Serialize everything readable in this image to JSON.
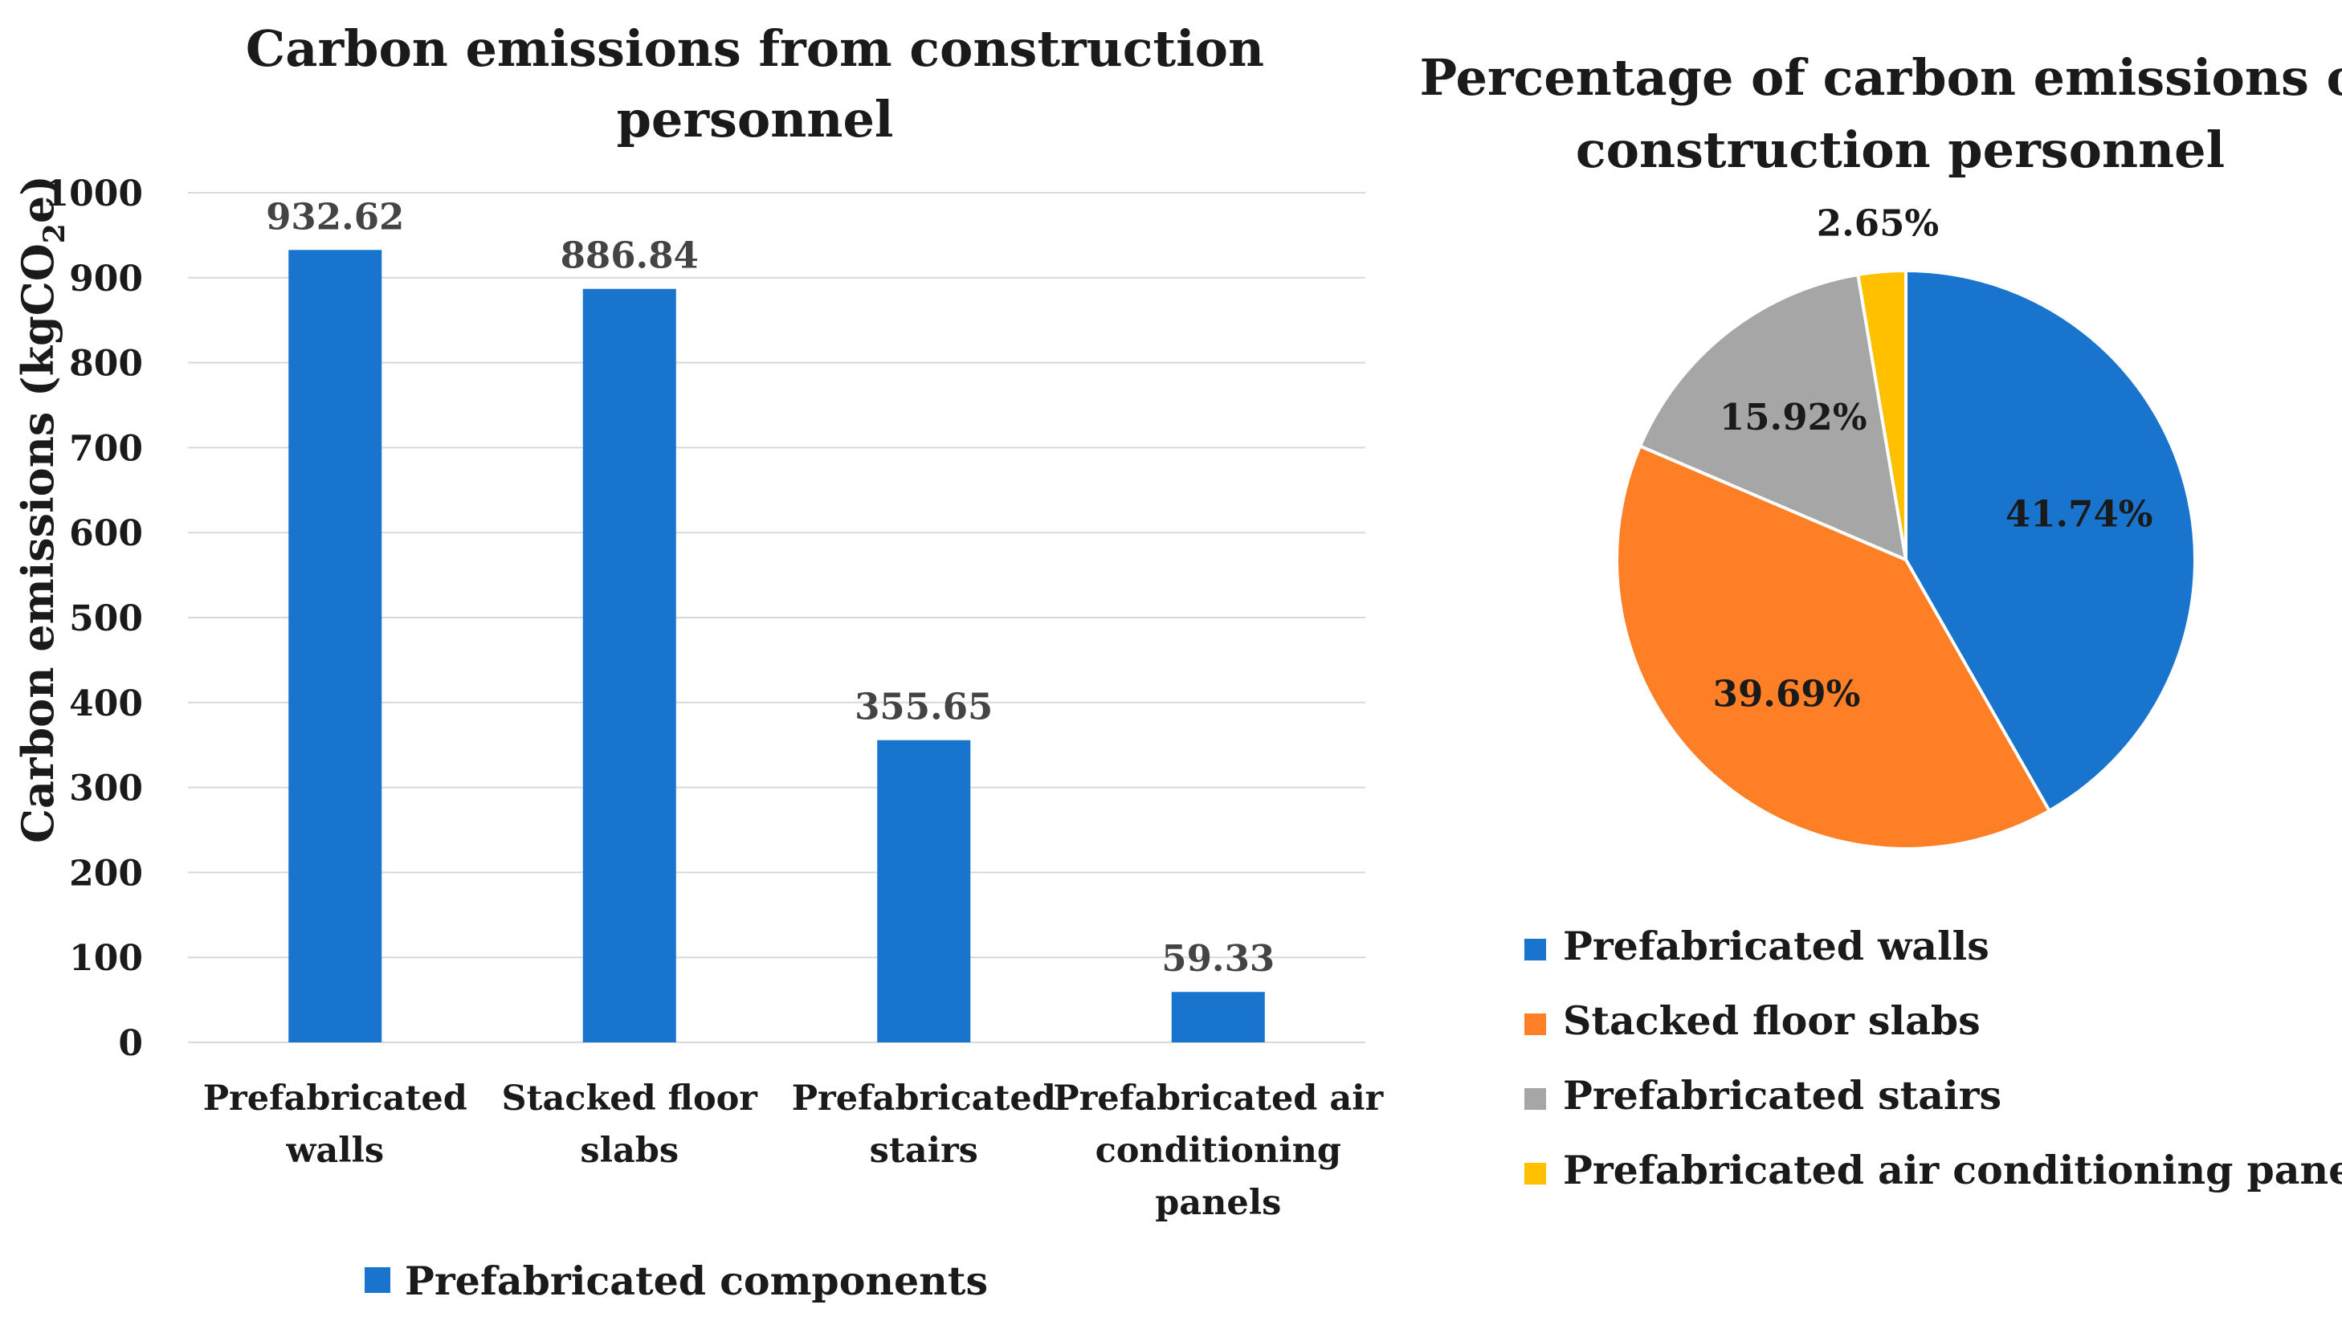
{
  "chart_data": [
    {
      "type": "bar",
      "title": "Carbon emissions from construction personnel",
      "title_lines": [
        "Carbon emissions from construction",
        "personnel"
      ],
      "xlabel": "",
      "ylabel": "Carbon emissions (kgCO2e)",
      "ylabel_parts": {
        "main": "Carbon emissions  (kgCO",
        "sub": "2",
        "tail": "e)"
      },
      "categories": [
        "Prefabricated walls",
        "Stacked floor slabs",
        "Prefabricated stairs",
        "Prefabricated air conditioning panels"
      ],
      "category_lines": [
        [
          "Prefabricated",
          "walls"
        ],
        [
          "Stacked floor",
          "slabs"
        ],
        [
          "Prefabricated",
          "stairs"
        ],
        [
          "Prefabricated air",
          "conditioning",
          "panels"
        ]
      ],
      "series": [
        {
          "name": "Prefabricated components",
          "color": "#1874CD",
          "values": [
            932.62,
            886.84,
            355.65,
            59.33
          ]
        }
      ],
      "data_labels": [
        "932.62",
        "886.84",
        "355.65",
        "59.33"
      ],
      "ylim": [
        0,
        1000
      ],
      "yticks": [
        0,
        100,
        200,
        300,
        400,
        500,
        600,
        700,
        800,
        900,
        1000
      ],
      "grid": true,
      "legend_position": "bottom"
    },
    {
      "type": "pie",
      "title": "Percentage of carbon emissions of construction personnel",
      "title_lines": [
        "Percentage of carbon emissions of",
        "construction personnel"
      ],
      "labels": [
        "Prefabricated walls",
        "Stacked floor slabs",
        "Prefabricated stairs",
        "Prefabricated air conditioning panels"
      ],
      "values": [
        41.74,
        39.69,
        15.92,
        2.65
      ],
      "value_labels": [
        "41.74%",
        "39.69%",
        "15.92%",
        "2.65%"
      ],
      "colors": [
        "#1874CD",
        "#FF7F27",
        "#A6A6A6",
        "#FFC000"
      ],
      "legend_position": "bottom"
    }
  ]
}
